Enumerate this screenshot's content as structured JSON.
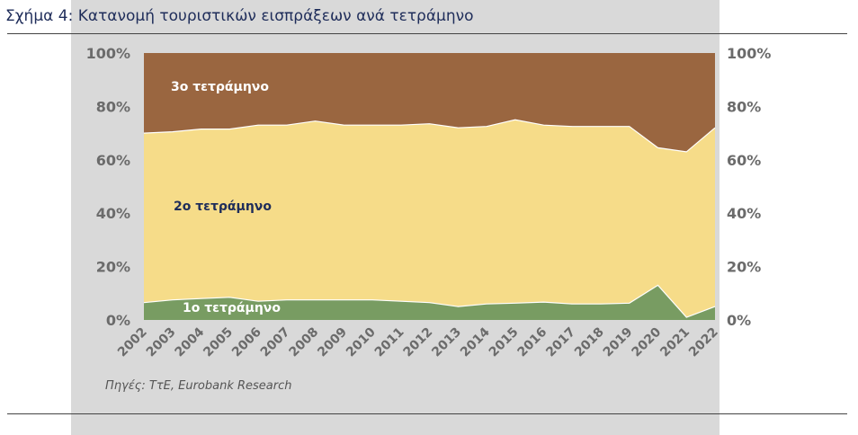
{
  "title": "Σχήμα 4:  Κατανομή τουριστικών εισπράξεων ανά τετράμηνο",
  "source": "Πηγές: ΤτΕ, Eurobank Research",
  "colors": {
    "q1": "#789c62",
    "q2": "#f6dc89",
    "q3": "#9a6640",
    "q3_label": "#ffffff",
    "q2_label": "#1f2d5a",
    "q1_label": "#ffffff"
  },
  "chart_data": {
    "type": "area",
    "stacked": true,
    "percent": true,
    "categories": [
      "2002",
      "2003",
      "2004",
      "2005",
      "2006",
      "2007",
      "2008",
      "2009",
      "2010",
      "2011",
      "2012",
      "2013",
      "2014",
      "2015",
      "2016",
      "2017",
      "2018",
      "2019",
      "2020",
      "2021",
      "2022"
    ],
    "series": [
      {
        "name": "1ο τετράμηνο",
        "values": [
          6.5,
          7.5,
          8,
          8.5,
          7,
          7.5,
          7.5,
          7.5,
          7.5,
          7,
          6.5,
          5,
          6,
          6.3,
          6.7,
          6,
          6,
          6.3,
          13,
          1,
          5
        ]
      },
      {
        "name": "2ο τετράμηνο",
        "values": [
          63.5,
          63,
          63.5,
          63,
          66,
          65.5,
          67,
          65.5,
          65.5,
          66,
          67,
          67,
          66.5,
          68.7,
          66.3,
          66.5,
          66.5,
          66.2,
          51.5,
          62,
          67
        ]
      },
      {
        "name": "3ο τετράμηνο",
        "values": [
          30,
          29.5,
          28.5,
          28.5,
          27,
          27,
          25.5,
          27,
          27,
          27,
          26.5,
          28,
          27.5,
          25,
          27,
          27.5,
          27.5,
          27.5,
          35.5,
          37,
          28
        ]
      }
    ],
    "ylim": [
      0,
      100
    ],
    "y_ticks": [
      "0%",
      "20%",
      "40%",
      "60%",
      "80%",
      "100%"
    ],
    "grid": false,
    "legend": "none"
  }
}
